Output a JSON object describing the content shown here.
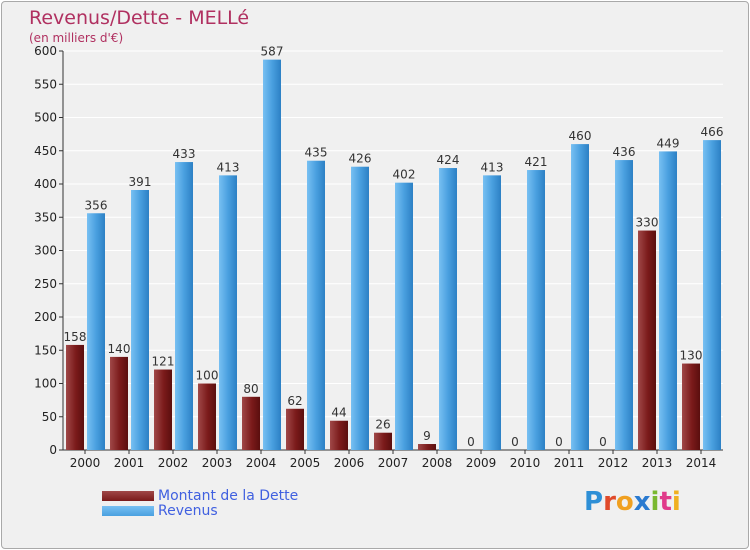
{
  "title": "Revenus/Dette - MELLé",
  "subtitle": "(en milliers d'€)",
  "brand": "Proxiti",
  "legend": {
    "debt_label": "Montant de la Dette",
    "revenue_label": "Revenus"
  },
  "colors": {
    "debt": "#7a1a1a",
    "debt_light": "#9a3a3a",
    "revenue": "#4aa0e0",
    "revenue_light": "#6cb8ee",
    "grid": "#ffffff",
    "plot_bg": "#f0f0f0"
  },
  "chart_data": {
    "type": "bar",
    "title": "Revenus/Dette - MELLé",
    "ylabel": "(en milliers d'€)",
    "xlabel": "",
    "ylim": [
      0,
      600
    ],
    "yticks": [
      0,
      50,
      100,
      150,
      200,
      250,
      300,
      350,
      400,
      450,
      500,
      550,
      600
    ],
    "grid": true,
    "categories": [
      "2000",
      "2001",
      "2002",
      "2003",
      "2004",
      "2005",
      "2006",
      "2007",
      "2008",
      "2009",
      "2010",
      "2011",
      "2012",
      "2013",
      "2014"
    ],
    "series": [
      {
        "name": "Montant de la Dette",
        "values": [
          158,
          140,
          121,
          100,
          80,
          62,
          44,
          26,
          9,
          0,
          0,
          0,
          0,
          330,
          130
        ]
      },
      {
        "name": "Revenus",
        "values": [
          356,
          391,
          433,
          413,
          587,
          435,
          426,
          402,
          424,
          413,
          421,
          460,
          436,
          449,
          466
        ]
      }
    ]
  }
}
